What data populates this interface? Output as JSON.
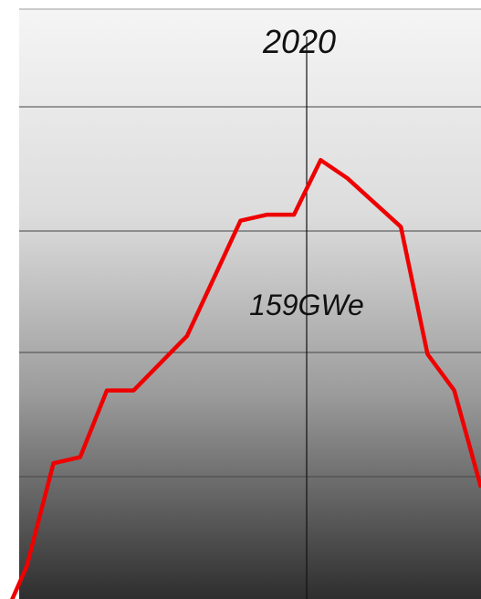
{
  "chart_data": {
    "type": "line",
    "title": "",
    "xlabel": "",
    "ylabel": "",
    "grid": true,
    "legend": "none",
    "marker_label": "2020",
    "series_label": "159GWe",
    "series": [
      {
        "color": "#ee0000",
        "points": [
          [
            2003,
            35
          ],
          [
            2004,
            45
          ],
          [
            2005,
            62
          ],
          [
            2006,
            63
          ],
          [
            2007,
            74
          ],
          [
            2008,
            74
          ],
          [
            2010,
            83
          ],
          [
            2012,
            102
          ],
          [
            2013,
            103
          ],
          [
            2014,
            103
          ],
          [
            2015,
            112
          ],
          [
            2016,
            109
          ],
          [
            2018,
            101
          ],
          [
            2019,
            80
          ],
          [
            2020,
            74
          ],
          [
            2021,
            58
          ]
        ]
      }
    ]
  },
  "colors": {
    "background_top": "#f5f5f5",
    "background_bottom": "#2e2e2e",
    "grid": "#333333",
    "line": "#ee0000"
  }
}
